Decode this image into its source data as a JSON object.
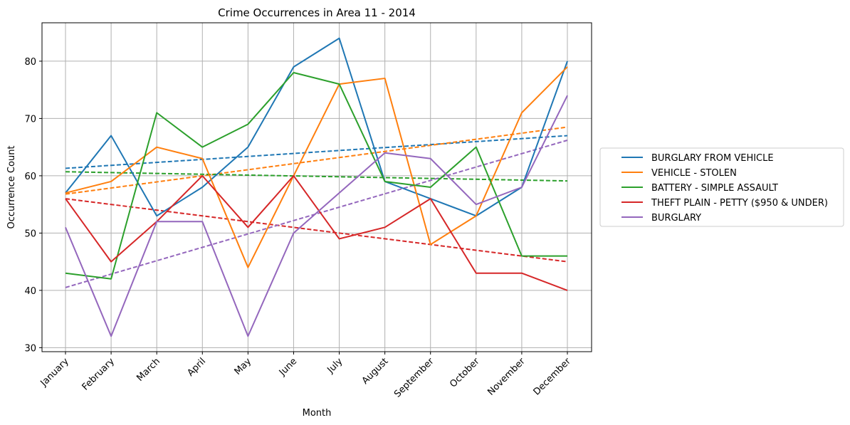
{
  "chart_data": {
    "type": "line",
    "title": "Crime Occurrences in Area 11 - 2014",
    "xlabel": "Month",
    "ylabel": "Occurrence Count",
    "categories": [
      "January",
      "February",
      "March",
      "April",
      "May",
      "June",
      "July",
      "August",
      "September",
      "October",
      "November",
      "December"
    ],
    "ylim": [
      29.3,
      86.7
    ],
    "yticks": [
      30,
      40,
      50,
      60,
      70,
      80
    ],
    "grid": true,
    "legend": "right",
    "series": [
      {
        "name": "BURGLARY FROM VEHICLE",
        "color": "#1f77b4",
        "values": [
          57,
          67,
          53,
          58,
          65,
          79,
          84,
          59,
          56,
          53,
          58,
          80
        ],
        "trend": [
          61.3,
          67.0
        ]
      },
      {
        "name": "VEHICLE - STOLEN",
        "color": "#ff7f0e",
        "values": [
          57,
          59,
          65,
          63,
          44,
          60,
          76,
          77,
          48,
          53,
          71,
          79
        ],
        "trend": [
          56.8,
          68.5
        ]
      },
      {
        "name": "BATTERY - SIMPLE ASSAULT",
        "color": "#2ca02c",
        "values": [
          43,
          42,
          71,
          65,
          69,
          78,
          76,
          59,
          58,
          65,
          46,
          46
        ],
        "trend": [
          60.7,
          59.1
        ]
      },
      {
        "name": "THEFT PLAIN - PETTY ($950 & UNDER)",
        "color": "#d62728",
        "values": [
          56,
          45,
          52,
          60,
          51,
          60,
          49,
          51,
          56,
          43,
          43,
          40
        ],
        "trend": [
          56.0,
          45.0
        ]
      },
      {
        "name": "BURGLARY",
        "color": "#9467bd",
        "values": [
          51,
          32,
          52,
          52,
          32,
          50,
          57,
          64,
          63,
          55,
          58,
          74
        ],
        "trend": [
          40.5,
          66.2
        ]
      }
    ]
  }
}
